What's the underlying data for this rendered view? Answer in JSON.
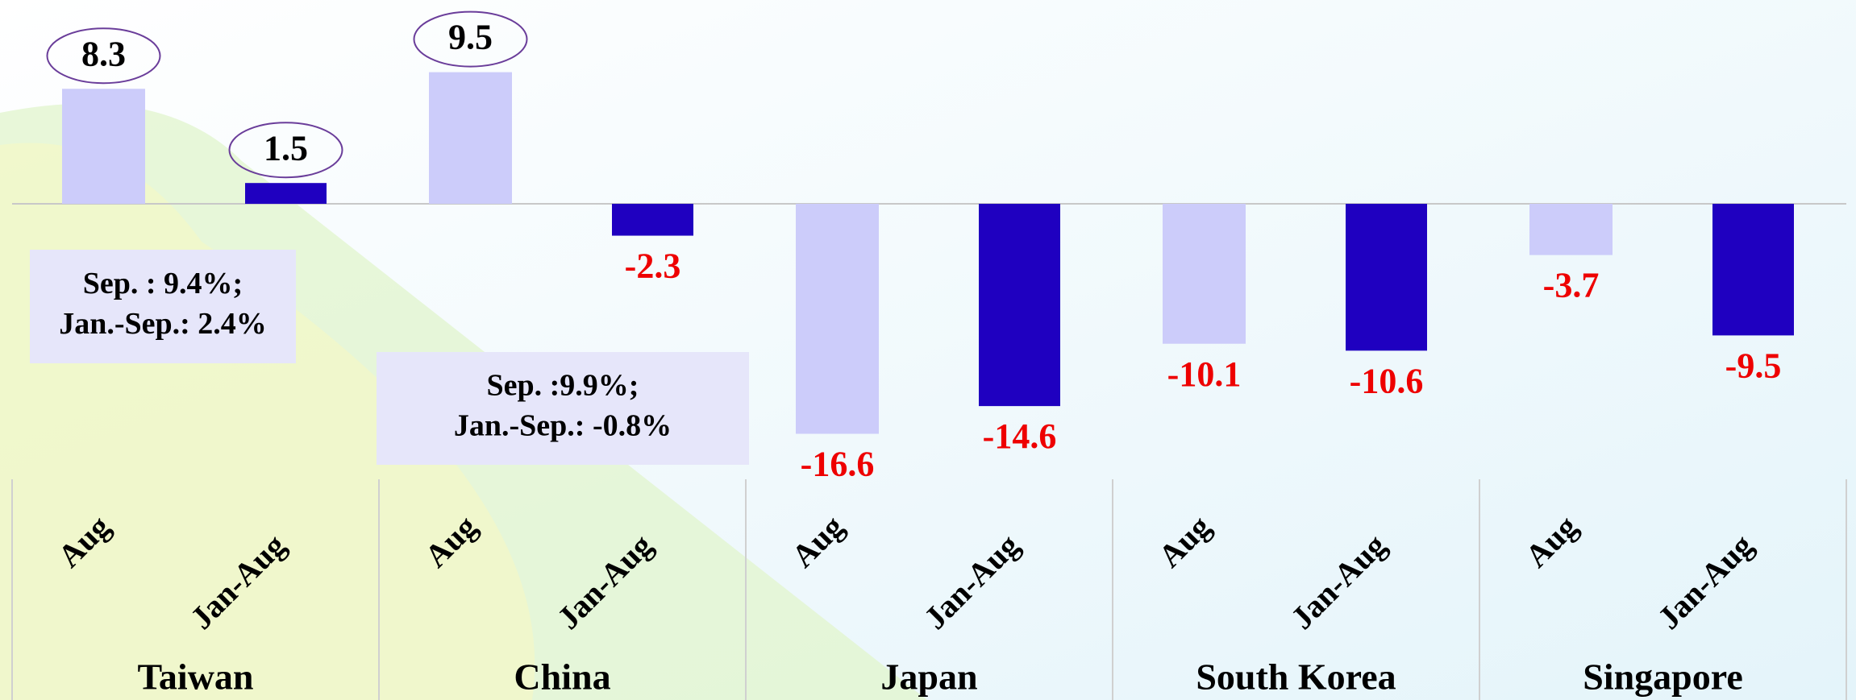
{
  "chart_data": {
    "type": "bar",
    "categories": [
      "Taiwan",
      "China",
      "Japan",
      "South Korea",
      "Singapore"
    ],
    "series": [
      {
        "name": "Aug",
        "color": "#ccccfa",
        "values": [
          8.3,
          9.5,
          -16.6,
          -10.1,
          -3.7
        ]
      },
      {
        "name": "Jan-Aug",
        "color": "#1f00c0",
        "values": [
          1.5,
          -2.3,
          -14.6,
          -10.6,
          -9.5
        ]
      }
    ],
    "annotations": [
      [
        "Sep. : 9.4%;",
        "Jan.-Sep.: 2.4%"
      ],
      [
        "Sep. :9.9%;",
        "Jan.-Sep.: -0.8%"
      ]
    ]
  }
}
